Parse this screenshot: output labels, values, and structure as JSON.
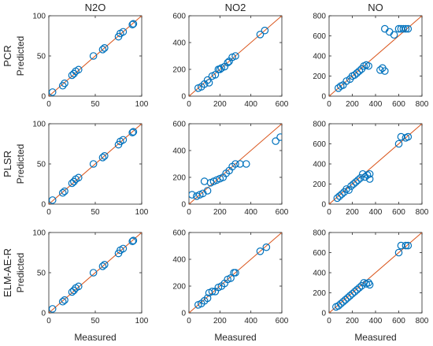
{
  "figure": {
    "x_axis_label": "Measured",
    "y_axis_label": "Predicted",
    "column_titles": [
      "N2O",
      "NO2",
      "NO"
    ],
    "row_titles": [
      "PCR",
      "PLSR",
      "ELM-AE-R"
    ],
    "marker_color": "#0072BD",
    "line_color": "#D95319"
  },
  "chart_data": [
    {
      "type": "scatter",
      "name": "pcr-n2o",
      "row": 0,
      "col": 0,
      "xlim": [
        0,
        100
      ],
      "ylim": [
        0,
        100
      ],
      "xticks": [
        "0",
        "50",
        "100"
      ],
      "yticks": [
        "0",
        "50",
        "100"
      ],
      "reference_line": [
        [
          0,
          0
        ],
        [
          100,
          100
        ]
      ],
      "points": [
        [
          4,
          5
        ],
        [
          15,
          13
        ],
        [
          17,
          16
        ],
        [
          25,
          26
        ],
        [
          27,
          28
        ],
        [
          29,
          31
        ],
        [
          32,
          33
        ],
        [
          48,
          50
        ],
        [
          58,
          58
        ],
        [
          60,
          60
        ],
        [
          75,
          74
        ],
        [
          77,
          78
        ],
        [
          80,
          80
        ],
        [
          90,
          89
        ],
        [
          91,
          90
        ]
      ]
    },
    {
      "type": "scatter",
      "name": "pcr-no2",
      "row": 0,
      "col": 1,
      "xlim": [
        0,
        600
      ],
      "ylim": [
        0,
        600
      ],
      "xticks": [
        "0",
        "200",
        "400",
        "600"
      ],
      "yticks": [
        "0",
        "200",
        "400",
        "600"
      ],
      "reference_line": [
        [
          0,
          0
        ],
        [
          600,
          600
        ]
      ],
      "points": [
        [
          60,
          60
        ],
        [
          80,
          70
        ],
        [
          100,
          90
        ],
        [
          120,
          120
        ],
        [
          130,
          100
        ],
        [
          150,
          150
        ],
        [
          170,
          160
        ],
        [
          190,
          200
        ],
        [
          200,
          200
        ],
        [
          210,
          210
        ],
        [
          230,
          220
        ],
        [
          250,
          250
        ],
        [
          260,
          260
        ],
        [
          280,
          290
        ],
        [
          300,
          300
        ],
        [
          460,
          460
        ],
        [
          490,
          490
        ]
      ]
    },
    {
      "type": "scatter",
      "name": "pcr-no",
      "row": 0,
      "col": 2,
      "xlim": [
        0,
        800
      ],
      "ylim": [
        0,
        800
      ],
      "xticks": [
        "0",
        "200",
        "400",
        "600",
        "800"
      ],
      "yticks": [
        "0",
        "200",
        "400",
        "600",
        "800"
      ],
      "reference_line": [
        [
          0,
          0
        ],
        [
          800,
          800
        ]
      ],
      "points": [
        [
          80,
          80
        ],
        [
          100,
          100
        ],
        [
          120,
          110
        ],
        [
          150,
          150
        ],
        [
          180,
          170
        ],
        [
          200,
          200
        ],
        [
          220,
          210
        ],
        [
          240,
          230
        ],
        [
          260,
          250
        ],
        [
          280,
          270
        ],
        [
          300,
          300
        ],
        [
          320,
          310
        ],
        [
          340,
          300
        ],
        [
          440,
          260
        ],
        [
          460,
          280
        ],
        [
          480,
          250
        ],
        [
          480,
          670
        ],
        [
          520,
          640
        ],
        [
          560,
          610
        ],
        [
          600,
          670
        ],
        [
          620,
          670
        ],
        [
          640,
          670
        ],
        [
          660,
          670
        ],
        [
          680,
          670
        ]
      ]
    },
    {
      "type": "scatter",
      "name": "plsr-n2o",
      "row": 1,
      "col": 0,
      "xlim": [
        0,
        100
      ],
      "ylim": [
        0,
        100
      ],
      "xticks": [
        "0",
        "50",
        "100"
      ],
      "yticks": [
        "0",
        "50",
        "100"
      ],
      "reference_line": [
        [
          0,
          0
        ],
        [
          100,
          100
        ]
      ],
      "points": [
        [
          4,
          5
        ],
        [
          15,
          14
        ],
        [
          17,
          16
        ],
        [
          25,
          26
        ],
        [
          27,
          28
        ],
        [
          29,
          31
        ],
        [
          32,
          33
        ],
        [
          48,
          50
        ],
        [
          58,
          58
        ],
        [
          60,
          60
        ],
        [
          75,
          74
        ],
        [
          77,
          78
        ],
        [
          80,
          80
        ],
        [
          90,
          89
        ],
        [
          91,
          90
        ]
      ]
    },
    {
      "type": "scatter",
      "name": "plsr-no2",
      "row": 1,
      "col": 1,
      "xlim": [
        0,
        600
      ],
      "ylim": [
        0,
        600
      ],
      "xticks": [
        "0",
        "200",
        "400",
        "600"
      ],
      "yticks": [
        "0",
        "200",
        "400",
        "600"
      ],
      "reference_line": [
        [
          0,
          0
        ],
        [
          600,
          600
        ]
      ],
      "points": [
        [
          20,
          70
        ],
        [
          50,
          60
        ],
        [
          70,
          70
        ],
        [
          90,
          80
        ],
        [
          100,
          170
        ],
        [
          120,
          100
        ],
        [
          140,
          160
        ],
        [
          160,
          170
        ],
        [
          180,
          180
        ],
        [
          200,
          190
        ],
        [
          220,
          200
        ],
        [
          240,
          230
        ],
        [
          260,
          250
        ],
        [
          280,
          280
        ],
        [
          300,
          300
        ],
        [
          330,
          300
        ],
        [
          370,
          300
        ],
        [
          560,
          470
        ],
        [
          590,
          500
        ]
      ]
    },
    {
      "type": "scatter",
      "name": "plsr-no",
      "row": 1,
      "col": 2,
      "xlim": [
        0,
        800
      ],
      "ylim": [
        0,
        800
      ],
      "xticks": [
        "0",
        "200",
        "400",
        "600",
        "800"
      ],
      "yticks": [
        "0",
        "200",
        "400",
        "600",
        "800"
      ],
      "reference_line": [
        [
          0,
          0
        ],
        [
          800,
          800
        ]
      ],
      "points": [
        [
          70,
          60
        ],
        [
          90,
          80
        ],
        [
          110,
          100
        ],
        [
          130,
          120
        ],
        [
          150,
          150
        ],
        [
          170,
          140
        ],
        [
          190,
          180
        ],
        [
          210,
          200
        ],
        [
          230,
          220
        ],
        [
          250,
          240
        ],
        [
          270,
          260
        ],
        [
          290,
          300
        ],
        [
          310,
          270
        ],
        [
          330,
          290
        ],
        [
          350,
          300
        ],
        [
          350,
          250
        ],
        [
          600,
          600
        ],
        [
          620,
          670
        ],
        [
          660,
          660
        ],
        [
          680,
          670
        ]
      ]
    },
    {
      "type": "scatter",
      "name": "elm-ae-r-n2o",
      "row": 2,
      "col": 0,
      "xlim": [
        0,
        100
      ],
      "ylim": [
        0,
        100
      ],
      "xticks": [
        "0",
        "50",
        "100"
      ],
      "yticks": [
        "0",
        "50",
        "100"
      ],
      "reference_line": [
        [
          0,
          0
        ],
        [
          100,
          100
        ]
      ],
      "points": [
        [
          4,
          5
        ],
        [
          15,
          14
        ],
        [
          17,
          16
        ],
        [
          25,
          26
        ],
        [
          27,
          28
        ],
        [
          29,
          31
        ],
        [
          32,
          33
        ],
        [
          48,
          50
        ],
        [
          58,
          58
        ],
        [
          60,
          60
        ],
        [
          75,
          74
        ],
        [
          77,
          78
        ],
        [
          80,
          80
        ],
        [
          90,
          89
        ],
        [
          91,
          90
        ]
      ]
    },
    {
      "type": "scatter",
      "name": "elm-ae-r-no2",
      "row": 2,
      "col": 1,
      "xlim": [
        0,
        600
      ],
      "ylim": [
        0,
        600
      ],
      "xticks": [
        "0",
        "200",
        "400",
        "600"
      ],
      "yticks": [
        "0",
        "200",
        "400",
        "600"
      ],
      "reference_line": [
        [
          0,
          0
        ],
        [
          600,
          600
        ]
      ],
      "points": [
        [
          60,
          60
        ],
        [
          80,
          70
        ],
        [
          100,
          90
        ],
        [
          120,
          110
        ],
        [
          130,
          150
        ],
        [
          150,
          160
        ],
        [
          170,
          160
        ],
        [
          190,
          190
        ],
        [
          210,
          200
        ],
        [
          230,
          220
        ],
        [
          250,
          250
        ],
        [
          270,
          260
        ],
        [
          290,
          300
        ],
        [
          300,
          300
        ],
        [
          460,
          460
        ],
        [
          500,
          490
        ]
      ]
    },
    {
      "type": "scatter",
      "name": "elm-ae-r-no",
      "row": 2,
      "col": 2,
      "xlim": [
        0,
        800
      ],
      "ylim": [
        0,
        800
      ],
      "xticks": [
        "0",
        "200",
        "400",
        "600",
        "800"
      ],
      "yticks": [
        "0",
        "200",
        "400",
        "600",
        "800"
      ],
      "reference_line": [
        [
          0,
          0
        ],
        [
          800,
          800
        ]
      ],
      "points": [
        [
          60,
          60
        ],
        [
          80,
          70
        ],
        [
          100,
          90
        ],
        [
          120,
          110
        ],
        [
          140,
          130
        ],
        [
          160,
          150
        ],
        [
          180,
          170
        ],
        [
          200,
          190
        ],
        [
          220,
          210
        ],
        [
          240,
          230
        ],
        [
          260,
          250
        ],
        [
          280,
          270
        ],
        [
          300,
          300
        ],
        [
          320,
          290
        ],
        [
          340,
          300
        ],
        [
          350,
          280
        ],
        [
          600,
          600
        ],
        [
          620,
          670
        ],
        [
          660,
          670
        ],
        [
          680,
          670
        ]
      ]
    }
  ]
}
